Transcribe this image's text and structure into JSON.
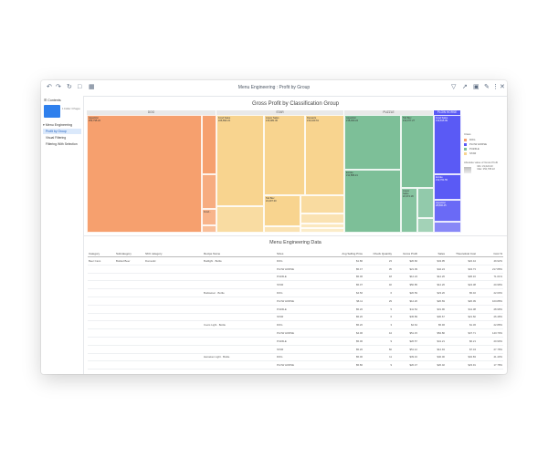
{
  "window": {
    "title": "Menu Engineering : Profit by Group",
    "toolbar_left": [
      "undo-icon",
      "redo-icon",
      "refresh-icon",
      "document-icon",
      "grid-icon"
    ],
    "toolbar_right": [
      "filter-icon",
      "export-icon",
      "expand-icon",
      "edit-icon",
      "more-icon",
      "close-icon"
    ]
  },
  "sidebar": {
    "header": "Contents",
    "thumb_label": "1 Folder 3 Pages",
    "section": "Menu Engineering",
    "items": [
      {
        "label": "Profit by Group",
        "active": true
      },
      {
        "label": "Visual Filtering",
        "active": false
      },
      {
        "label": "Filtering With Selection",
        "active": false
      }
    ]
  },
  "colors": {
    "dog": "#f6a06e",
    "star": "#f8d48f",
    "puzzle": "#7dbf98",
    "plowhorse": "#5a5af5",
    "accent": "#2f80ed"
  },
  "chart_data": {
    "type": "treemap",
    "title": "Gross Profit by Classification Group",
    "groups": [
      {
        "name": "DOG",
        "tiles": [
          {
            "label": "Appetizer",
            "value_text": "¥52,795.22"
          },
          {
            "label": "Food...",
            "value_text": ""
          }
        ]
      },
      {
        "name": "STAR",
        "tiles": [
          {
            "label": "Food Sales",
            "value_text": "¥26,893.24"
          },
          {
            "label": "Liquor Sales",
            "value_text": "¥13,981.00"
          },
          {
            "label": "Desserts",
            "value_text": "¥10,420.61"
          },
          {
            "label": "Tab Bev",
            "value_text": "¥4,407.30"
          }
        ]
      },
      {
        "name": "PUZZLE",
        "tiles": [
          {
            "label": "Appetizer",
            "value_text": "¥18,000.24"
          },
          {
            "label": "Tab Bev",
            "value_text": "¥12,077.27"
          },
          {
            "label": "Entrée",
            "value_text": "¥11,586.21"
          },
          {
            "label": "Liquor Sales",
            "value_text": "¥2,374.18"
          }
        ]
      },
      {
        "name": "PLOW HORSE",
        "tiles": [
          {
            "label": "Food Sales",
            "value_text": "¥19,815.99"
          },
          {
            "label": "Entrée",
            "value_text": "¥12,761.55"
          },
          {
            "label": "Appetizer",
            "value_text": "¥8,806.45"
          }
        ]
      }
    ],
    "legend": {
      "title": "Class",
      "entries": [
        "DOG",
        "PLOW HORSE",
        "PUZZLE",
        "STAR"
      ],
      "gradient_title": "Absolute value of Gross Profit",
      "gradient_min": "Min: ¥1,024.23",
      "gradient_max": "Max: ¥52,795.22"
    }
  },
  "table": {
    "title": "Menu Engineering Data",
    "columns": [
      "Category",
      "Subcategory",
      "SKU category",
      "Recipe Name",
      "Sizes",
      "Avg Selling Price",
      "Check Quantity",
      "Gross Profit",
      "Sales",
      "Theoretical Cost",
      "Cost %"
    ],
    "rows": [
      [
        "Beer Cans",
        "Bottled Beer",
        "Domestic",
        "Budlight · Bottle",
        "DOG",
        "$1.80",
        "23",
        "$20.66",
        "$43.95",
        "$22.44",
        "49.92%"
      ],
      [
        "",
        "",
        "",
        "",
        "PLOW HORSE",
        "$5.47",
        "35",
        "$21.09",
        "$42.24",
        "$34.73",
        "217.88%"
      ],
      [
        "",
        "",
        "",
        "",
        "PUZZLE",
        "$5.06",
        "18",
        "$12.24",
        "$12.26",
        "$36.16",
        "71.01%"
      ],
      [
        "",
        "",
        "",
        "",
        "STAR",
        "$5.07",
        "40",
        "$50.85",
        "$12.26",
        "$24.38",
        "20.98%"
      ],
      [
        "",
        "",
        "",
        "Budweiser · Bottle",
        "DOG",
        "$4.56",
        "6",
        "$20.59",
        "$23.26",
        "$5.40",
        "22.69%"
      ],
      [
        "",
        "",
        "",
        "",
        "PLOW HORSE",
        "$6.11",
        "29",
        "$12.20",
        "$20.69",
        "$20.09",
        "100.88%"
      ],
      [
        "",
        "",
        "",
        "",
        "PUZZLE",
        "$5.20",
        "5",
        "$11.54",
        "$31.96",
        "$11.38",
        "28.98%"
      ],
      [
        "",
        "",
        "",
        "",
        "STAR",
        "$5.20",
        "6",
        "$45.89",
        "$30.67",
        "$21.60",
        "26.48%"
      ],
      [
        "",
        "",
        "",
        "Coors Light · Bottle",
        "DOG",
        "$5.20",
        "3",
        "$4.62",
        "$5.96",
        "$1.36",
        "22.88%"
      ],
      [
        "",
        "",
        "",
        "",
        "PLOW HORSE",
        "$4.06",
        "44",
        "$51.15",
        "$52.80",
        "$47.71",
        "140.79%"
      ],
      [
        "",
        "",
        "",
        "",
        "PUZZLE",
        "$5.00",
        "9",
        "$26.57",
        "$41.21",
        "$6.21",
        "20.99%"
      ],
      [
        "",
        "",
        "",
        "",
        "STAR",
        "$5.20",
        "66",
        "$51.12",
        "$12.94",
        "$7.34",
        "27.78%"
      ],
      [
        "",
        "",
        "",
        "Heineken Light · Bottle",
        "DOG",
        "$5.00",
        "11",
        "$39.16",
        "$40.00",
        "$32.83",
        "41.40%"
      ],
      [
        "",
        "",
        "",
        "",
        "PLOW HORSE",
        "$5.80",
        "9",
        "$20.47",
        "$20.02",
        "$23.91",
        "17.78%"
      ]
    ]
  }
}
